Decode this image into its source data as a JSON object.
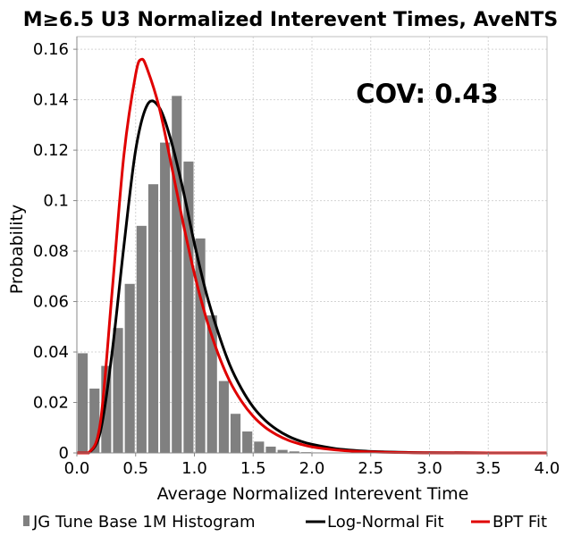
{
  "chart_data": {
    "type": "bar",
    "title": "M≥6.5 U3 Normalized Interevent Times, AveNTS",
    "xlabel": "Average Normalized Interevent Time",
    "ylabel": "Probability",
    "xlim": [
      0,
      4.0
    ],
    "ylim": [
      0,
      0.165
    ],
    "x_ticks": [
      0.0,
      0.5,
      1.0,
      1.5,
      2.0,
      2.5,
      3.0,
      3.5,
      4.0
    ],
    "x_tick_labels": [
      "0.0",
      "0.5",
      "1.0",
      "1.5",
      "2.0",
      "2.5",
      "3.0",
      "3.5",
      "4.0"
    ],
    "y_ticks": [
      0,
      0.02,
      0.04,
      0.06,
      0.08,
      0.1,
      0.12,
      0.14,
      0.16
    ],
    "y_tick_labels": [
      "0",
      "0.02",
      "0.04",
      "0.06",
      "0.08",
      "0.1",
      "0.12",
      "0.14",
      "0.16"
    ],
    "grid": true,
    "legend_position": "bottom",
    "annotation": "COV: 0.43",
    "histogram": {
      "name": "JG Tune Base 1M Histogram",
      "color": "#808080",
      "bin_width": 0.1,
      "bin_centers": [
        0.05,
        0.15,
        0.25,
        0.35,
        0.45,
        0.55,
        0.65,
        0.75,
        0.85,
        0.95,
        1.05,
        1.15,
        1.25,
        1.35,
        1.45,
        1.55,
        1.65,
        1.75,
        1.85,
        1.95,
        2.05,
        2.15
      ],
      "values": [
        0.0395,
        0.0255,
        0.0345,
        0.0495,
        0.067,
        0.09,
        0.1065,
        0.123,
        0.1415,
        0.1155,
        0.085,
        0.0545,
        0.0285,
        0.0155,
        0.0085,
        0.0045,
        0.0025,
        0.0012,
        0.0006,
        0.0003,
        0.0002,
        0.0001
      ]
    },
    "series": [
      {
        "name": "Log-Normal Fit",
        "color": "#000000",
        "type": "line",
        "x": [
          0,
          0.1,
          0.2,
          0.3,
          0.4,
          0.5,
          0.6,
          0.7,
          0.8,
          0.9,
          1.0,
          1.1,
          1.2,
          1.3,
          1.4,
          1.5,
          1.6,
          1.7,
          1.8,
          1.9,
          2.0,
          2.2,
          2.4,
          2.6,
          2.8,
          3.0,
          3.5,
          4.0
        ],
        "y": [
          0,
          0.0,
          0.0085,
          0.04,
          0.082,
          0.12,
          0.138,
          0.137,
          0.124,
          0.105,
          0.083,
          0.0635,
          0.048,
          0.035,
          0.0255,
          0.0182,
          0.013,
          0.0093,
          0.0066,
          0.0047,
          0.0034,
          0.0017,
          0.00085,
          0.00043,
          0.00022,
          0.00011,
          2e-05,
          0
        ]
      },
      {
        "name": "BPT Fit",
        "color": "#e00000",
        "type": "line",
        "x": [
          0,
          0.1,
          0.2,
          0.3,
          0.4,
          0.5,
          0.55,
          0.6,
          0.7,
          0.8,
          0.9,
          1.0,
          1.1,
          1.2,
          1.3,
          1.4,
          1.5,
          1.6,
          1.7,
          1.8,
          1.9,
          2.0,
          2.2,
          2.4,
          2.6,
          2.8,
          3.0,
          3.5,
          4.0
        ],
        "y": [
          0,
          0.0,
          0.012,
          0.064,
          0.118,
          0.15,
          0.156,
          0.152,
          0.137,
          0.115,
          0.092,
          0.071,
          0.0535,
          0.0395,
          0.0285,
          0.0205,
          0.0145,
          0.0102,
          0.0072,
          0.005,
          0.0035,
          0.0024,
          0.0012,
          0.00058,
          0.00028,
          0.00013,
          6e-05,
          1e-05,
          0
        ]
      }
    ]
  }
}
